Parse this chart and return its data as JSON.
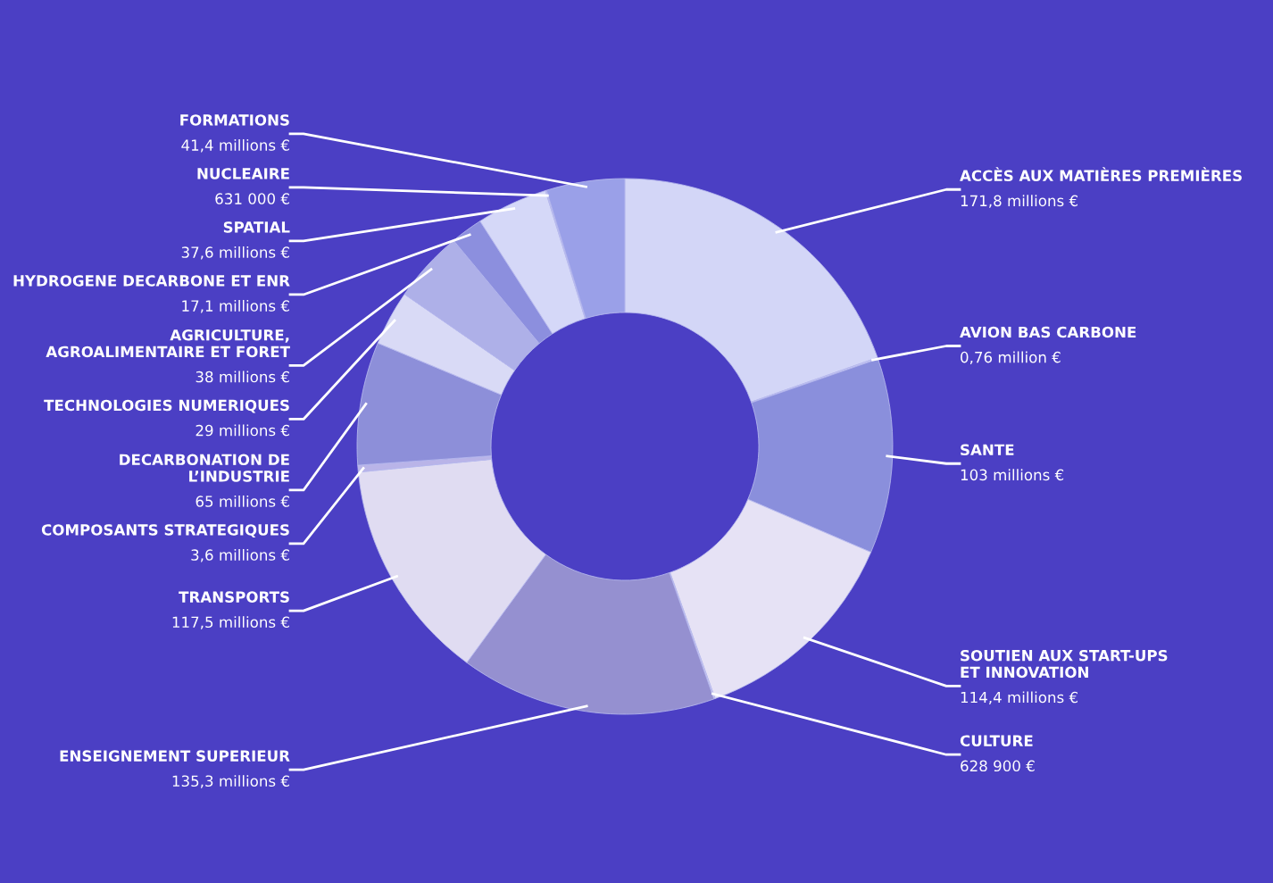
{
  "chart_data": {
    "type": "donut",
    "categories": [
      "ACCÈS AUX MATIÈRES PREMIÈRES",
      "AVION BAS CARBONE",
      "SANTE",
      "SOUTIEN AUX START-UPS\nET INNOVATION",
      "CULTURE",
      "ENSEIGNEMENT SUPERIEUR",
      "TRANSPORTS",
      "COMPOSANTS STRATEGIQUES",
      "DECARBONATION DE\nL’INDUSTRIE",
      "TECHNOLOGIES NUMERIQUES",
      "AGRICULTURE,\nAGROALIMENTAIRE ET FORET",
      "HYDROGENE DECARBONE ET ENR",
      "SPATIAL",
      "NUCLEAIRE",
      "FORMATIONS"
    ],
    "values": [
      171800000,
      760000,
      103000000,
      114400000,
      628900,
      135300000,
      117500000,
      3600000,
      65000000,
      29000000,
      38000000,
      17100000,
      37600000,
      631000,
      41400000
    ],
    "value_labels": [
      "171,8 millions €",
      "0,76 million €",
      "103 millions €",
      "114,4 millions €",
      "628 900 €",
      "135,3 millions €",
      "117,5 millions €",
      "3,6 millions €",
      "65 millions €",
      "29 millions €",
      "38 millions €",
      "17,1 millions €",
      "37,6 millions €",
      "631 000 €",
      "41,4 millions €"
    ],
    "colors": [
      "#d3d6f7",
      "#c7c9f2",
      "#8a8fdc",
      "#e6e2f5",
      "#d8d2ee",
      "#9590d0",
      "#e0dcf2",
      "#b9b4e8",
      "#8d8fd9",
      "#d9daf6",
      "#aeb0e8",
      "#8c8fde",
      "#d5d8f8",
      "#c0c3f0",
      "#9aa0e8"
    ]
  }
}
